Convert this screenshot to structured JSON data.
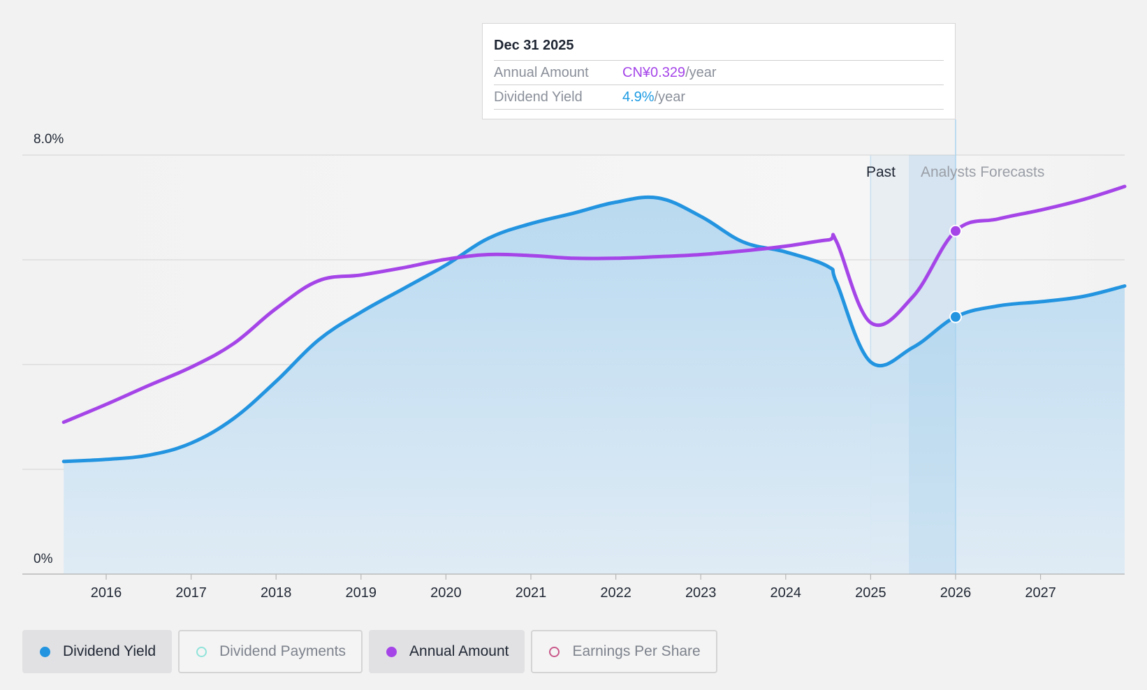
{
  "chart_data": {
    "type": "line",
    "x_ticks": [
      "2016",
      "2017",
      "2018",
      "2019",
      "2020",
      "2021",
      "2022",
      "2023",
      "2024",
      "2025",
      "2026",
      "2027"
    ],
    "y_tick_labels": {
      "top": "8.0%",
      "bottom": "0%"
    },
    "ylim": [
      0,
      8.0
    ],
    "grid": true,
    "past_label": "Past",
    "forecast_label": "Analysts Forecasts",
    "series": [
      {
        "name": "Dividend Yield",
        "color": "#2394e0",
        "area": true,
        "x": [
          2015.5,
          2016.0,
          2016.5,
          2017.0,
          2017.5,
          2018.0,
          2018.5,
          2019.0,
          2019.5,
          2020.0,
          2020.5,
          2021.0,
          2021.5,
          2022.0,
          2022.5,
          2023.0,
          2023.5,
          2024.0,
          2024.5,
          2024.6,
          2025.0,
          2025.5,
          2026.0,
          2026.5,
          2027.0,
          2027.5,
          2028.0
        ],
        "y": [
          2.15,
          2.19,
          2.27,
          2.5,
          2.97,
          3.68,
          4.47,
          5.0,
          5.45,
          5.9,
          6.41,
          6.69,
          6.89,
          7.1,
          7.18,
          6.83,
          6.34,
          6.15,
          5.87,
          5.56,
          4.05,
          4.33,
          4.91,
          5.12,
          5.2,
          5.3,
          5.5
        ]
      },
      {
        "name": "Annual Amount",
        "color": "#a545e8",
        "area": false,
        "x": [
          2015.5,
          2016.0,
          2016.5,
          2017.0,
          2017.5,
          2018.0,
          2018.5,
          2019.0,
          2019.5,
          2020.0,
          2020.5,
          2021.0,
          2021.5,
          2022.0,
          2022.5,
          2023.0,
          2023.5,
          2024.0,
          2024.5,
          2024.6,
          2025.0,
          2025.5,
          2026.0,
          2026.5,
          2027.0,
          2027.5,
          2028.0
        ],
        "y": [
          2.9,
          3.24,
          3.6,
          3.95,
          4.4,
          5.07,
          5.6,
          5.71,
          5.85,
          6.01,
          6.1,
          6.08,
          6.03,
          6.03,
          6.06,
          6.1,
          6.17,
          6.26,
          6.38,
          6.34,
          4.8,
          5.3,
          6.55,
          6.78,
          6.95,
          7.15,
          7.4
        ]
      }
    ],
    "highlight": {
      "x": 2026.0,
      "yield_y": 4.91,
      "amount_y": 6.55
    }
  },
  "tooltip": {
    "date": "Dec 31 2025",
    "annual_label": "Annual Amount",
    "annual_value": "CN¥0.329",
    "annual_suffix": "/year",
    "yield_label": "Dividend Yield",
    "yield_value": "4.9%",
    "yield_suffix": "/year"
  },
  "legend": [
    {
      "label": "Dividend Yield",
      "active": true,
      "dot_color": "#2394e0",
      "filled": true
    },
    {
      "label": "Dividend Payments",
      "active": false,
      "dot_color": "#8fe3d9",
      "filled": false
    },
    {
      "label": "Annual Amount",
      "active": true,
      "dot_color": "#a545e8",
      "filled": true
    },
    {
      "label": "Earnings Per Share",
      "active": false,
      "dot_color": "#c9588a",
      "filled": false
    }
  ]
}
